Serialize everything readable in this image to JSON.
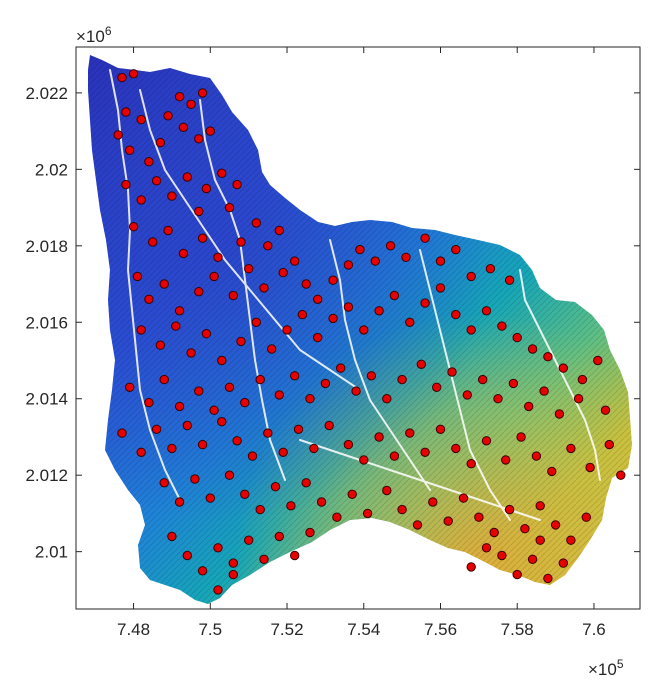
{
  "chart_data": {
    "type": "scatter",
    "title": "",
    "xlabel": "",
    "ylabel": "",
    "x_exponent_label": "×10",
    "x_exponent_power": "5",
    "y_exponent_label": "×10",
    "y_exponent_power": "6",
    "xlim": [
      7.465,
      7.612
    ],
    "ylim": [
      2.0085,
      2.0232
    ],
    "x_ticks": [
      7.48,
      7.5,
      7.52,
      7.54,
      7.56,
      7.58,
      7.6
    ],
    "x_tick_labels": [
      "7.48",
      "7.5",
      "7.52",
      "7.54",
      "7.56",
      "7.58",
      "7.6"
    ],
    "y_ticks": [
      2.01,
      2.012,
      2.014,
      2.016,
      2.018,
      2.02,
      2.022
    ],
    "y_tick_labels": [
      "2.01",
      "2.012",
      "2.014",
      "2.016",
      "2.018",
      "2.02",
      "2.022"
    ],
    "grid": false,
    "background_surface": "elevation colormap (parula) shaded relief of watershed",
    "colors": {
      "points_fill": "#e60000",
      "points_edge": "#3a0000",
      "streams": "#ffffff",
      "axes": "#262626"
    },
    "series": [
      {
        "marker": "filled-circle",
        "points": [
          [
            7.477,
            2.0224
          ],
          [
            7.48,
            2.0225
          ],
          [
            7.478,
            2.0215
          ],
          [
            7.482,
            2.0213
          ],
          [
            7.476,
            2.0209
          ],
          [
            7.479,
            2.0205
          ],
          [
            7.484,
            2.0202
          ],
          [
            7.487,
            2.0207
          ],
          [
            7.489,
            2.0214
          ],
          [
            7.492,
            2.0219
          ],
          [
            7.495,
            2.0217
          ],
          [
            7.498,
            2.022
          ],
          [
            7.493,
            2.0211
          ],
          [
            7.497,
            2.0208
          ],
          [
            7.5,
            2.021
          ],
          [
            7.478,
            2.0196
          ],
          [
            7.482,
            2.0192
          ],
          [
            7.486,
            2.0197
          ],
          [
            7.49,
            2.0193
          ],
          [
            7.494,
            2.0198
          ],
          [
            7.499,
            2.0195
          ],
          [
            7.503,
            2.0199
          ],
          [
            7.507,
            2.0196
          ],
          [
            7.505,
            2.019
          ],
          [
            7.497,
            2.0189
          ],
          [
            7.48,
            2.0185
          ],
          [
            7.485,
            2.0181
          ],
          [
            7.489,
            2.0184
          ],
          [
            7.493,
            2.0178
          ],
          [
            7.498,
            2.0182
          ],
          [
            7.502,
            2.0177
          ],
          [
            7.508,
            2.0181
          ],
          [
            7.512,
            2.0186
          ],
          [
            7.515,
            2.018
          ],
          [
            7.518,
            2.0184
          ],
          [
            7.481,
            2.0172
          ],
          [
            7.484,
            2.0166
          ],
          [
            7.488,
            2.017
          ],
          [
            7.492,
            2.0163
          ],
          [
            7.497,
            2.0168
          ],
          [
            7.501,
            2.0172
          ],
          [
            7.506,
            2.0167
          ],
          [
            7.51,
            2.0174
          ],
          [
            7.514,
            2.0169
          ],
          [
            7.519,
            2.0173
          ],
          [
            7.522,
            2.0176
          ],
          [
            7.525,
            2.017
          ],
          [
            7.528,
            2.0166
          ],
          [
            7.532,
            2.0171
          ],
          [
            7.536,
            2.0175
          ],
          [
            7.539,
            2.0179
          ],
          [
            7.543,
            2.0176
          ],
          [
            7.547,
            2.018
          ],
          [
            7.551,
            2.0177
          ],
          [
            7.556,
            2.0182
          ],
          [
            7.56,
            2.0176
          ],
          [
            7.564,
            2.0179
          ],
          [
            7.568,
            2.0172
          ],
          [
            7.573,
            2.0174
          ],
          [
            7.578,
            2.0171
          ],
          [
            7.482,
            2.0158
          ],
          [
            7.487,
            2.0154
          ],
          [
            7.491,
            2.0159
          ],
          [
            7.495,
            2.0152
          ],
          [
            7.499,
            2.0157
          ],
          [
            7.503,
            2.015
          ],
          [
            7.508,
            2.0155
          ],
          [
            7.512,
            2.016
          ],
          [
            7.516,
            2.0153
          ],
          [
            7.52,
            2.0158
          ],
          [
            7.524,
            2.0162
          ],
          [
            7.528,
            2.0156
          ],
          [
            7.532,
            2.0161
          ],
          [
            7.536,
            2.0164
          ],
          [
            7.54,
            2.0158
          ],
          [
            7.544,
            2.0163
          ],
          [
            7.548,
            2.0167
          ],
          [
            7.552,
            2.016
          ],
          [
            7.556,
            2.0165
          ],
          [
            7.56,
            2.0169
          ],
          [
            7.564,
            2.0162
          ],
          [
            7.568,
            2.0158
          ],
          [
            7.572,
            2.0163
          ],
          [
            7.576,
            2.0159
          ],
          [
            7.58,
            2.0156
          ],
          [
            7.584,
            2.0153
          ],
          [
            7.588,
            2.0151
          ],
          [
            7.592,
            2.0148
          ],
          [
            7.597,
            2.0145
          ],
          [
            7.601,
            2.015
          ],
          [
            7.479,
            2.0143
          ],
          [
            7.484,
            2.0139
          ],
          [
            7.488,
            2.0145
          ],
          [
            7.492,
            2.0138
          ],
          [
            7.497,
            2.0142
          ],
          [
            7.501,
            2.0137
          ],
          [
            7.505,
            2.0143
          ],
          [
            7.509,
            2.0139
          ],
          [
            7.513,
            2.0145
          ],
          [
            7.518,
            2.0141
          ],
          [
            7.522,
            2.0146
          ],
          [
            7.526,
            2.014
          ],
          [
            7.53,
            2.0144
          ],
          [
            7.534,
            2.0148
          ],
          [
            7.538,
            2.0142
          ],
          [
            7.542,
            2.0146
          ],
          [
            7.546,
            2.014
          ],
          [
            7.55,
            2.0145
          ],
          [
            7.555,
            2.0149
          ],
          [
            7.559,
            2.0143
          ],
          [
            7.563,
            2.0147
          ],
          [
            7.567,
            2.0141
          ],
          [
            7.571,
            2.0145
          ],
          [
            7.575,
            2.014
          ],
          [
            7.579,
            2.0144
          ],
          [
            7.583,
            2.0138
          ],
          [
            7.587,
            2.0142
          ],
          [
            7.591,
            2.0136
          ],
          [
            7.596,
            2.014
          ],
          [
            7.603,
            2.0137
          ],
          [
            7.477,
            2.0131
          ],
          [
            7.482,
            2.0126
          ],
          [
            7.486,
            2.0132
          ],
          [
            7.49,
            2.0127
          ],
          [
            7.494,
            2.0133
          ],
          [
            7.498,
            2.0128
          ],
          [
            7.503,
            2.0134
          ],
          [
            7.507,
            2.0129
          ],
          [
            7.511,
            2.0125
          ],
          [
            7.515,
            2.0131
          ],
          [
            7.519,
            2.0126
          ],
          [
            7.523,
            2.0132
          ],
          [
            7.527,
            2.0127
          ],
          [
            7.531,
            2.0133
          ],
          [
            7.536,
            2.0128
          ],
          [
            7.54,
            2.0124
          ],
          [
            7.544,
            2.013
          ],
          [
            7.548,
            2.0125
          ],
          [
            7.552,
            2.0131
          ],
          [
            7.556,
            2.0126
          ],
          [
            7.56,
            2.0132
          ],
          [
            7.564,
            2.0127
          ],
          [
            7.568,
            2.0123
          ],
          [
            7.572,
            2.0129
          ],
          [
            7.577,
            2.0124
          ],
          [
            7.581,
            2.013
          ],
          [
            7.585,
            2.0125
          ],
          [
            7.589,
            2.0121
          ],
          [
            7.594,
            2.0127
          ],
          [
            7.599,
            2.0122
          ],
          [
            7.604,
            2.0128
          ],
          [
            7.607,
            2.012
          ],
          [
            7.488,
            2.0118
          ],
          [
            7.492,
            2.0113
          ],
          [
            7.496,
            2.0119
          ],
          [
            7.5,
            2.0114
          ],
          [
            7.505,
            2.012
          ],
          [
            7.509,
            2.0115
          ],
          [
            7.513,
            2.0111
          ],
          [
            7.517,
            2.0117
          ],
          [
            7.521,
            2.0112
          ],
          [
            7.525,
            2.0118
          ],
          [
            7.529,
            2.0113
          ],
          [
            7.533,
            2.0109
          ],
          [
            7.537,
            2.0115
          ],
          [
            7.541,
            2.011
          ],
          [
            7.546,
            2.0116
          ],
          [
            7.55,
            2.0111
          ],
          [
            7.554,
            2.0107
          ],
          [
            7.558,
            2.0113
          ],
          [
            7.562,
            2.0108
          ],
          [
            7.566,
            2.0114
          ],
          [
            7.57,
            2.0109
          ],
          [
            7.574,
            2.0105
          ],
          [
            7.578,
            2.0111
          ],
          [
            7.582,
            2.0106
          ],
          [
            7.586,
            2.0112
          ],
          [
            7.59,
            2.0107
          ],
          [
            7.594,
            2.0103
          ],
          [
            7.598,
            2.0109
          ],
          [
            7.49,
            2.0104
          ],
          [
            7.494,
            2.0099
          ],
          [
            7.498,
            2.0095
          ],
          [
            7.502,
            2.0101
          ],
          [
            7.506,
            2.0097
          ],
          [
            7.51,
            2.0103
          ],
          [
            7.514,
            2.0098
          ],
          [
            7.518,
            2.0104
          ],
          [
            7.522,
            2.0099
          ],
          [
            7.526,
            2.0105
          ],
          [
            7.576,
            2.0099
          ],
          [
            7.58,
            2.0094
          ],
          [
            7.584,
            2.0098
          ],
          [
            7.588,
            2.0093
          ],
          [
            7.592,
            2.0097
          ],
          [
            7.502,
            2.009
          ],
          [
            7.506,
            2.0094
          ],
          [
            7.568,
            2.0096
          ],
          [
            7.572,
            2.0101
          ],
          [
            7.586,
            2.0103
          ]
        ]
      }
    ]
  }
}
